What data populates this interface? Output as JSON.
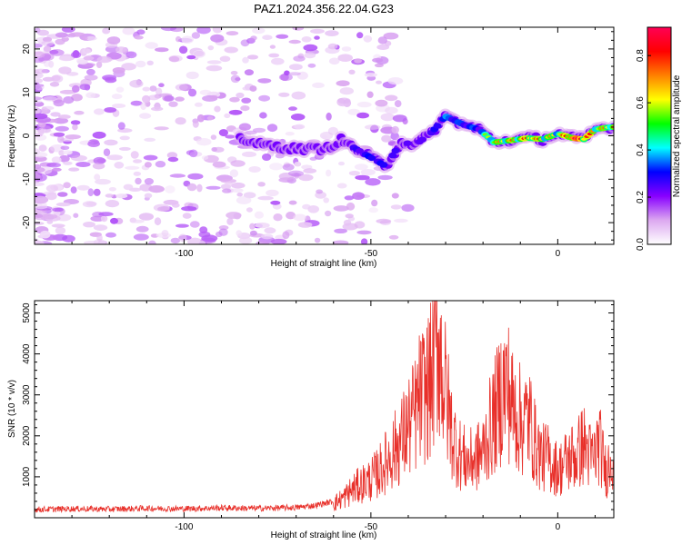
{
  "chart_data": [
    {
      "type": "heatmap",
      "title": "PAZ1.2024.356.22.04.G23",
      "xlabel": "Height of straight line (km)",
      "ylabel": "Frequency (Hz)",
      "xlim": [
        -140,
        15
      ],
      "ylim": [
        -25,
        25
      ],
      "xticks": [
        "-100",
        "-50",
        "0"
      ],
      "xtick_values": [
        -100,
        -50,
        0
      ],
      "yticks": [
        "20",
        "10",
        "0",
        "-10",
        "-20"
      ],
      "ytick_values": [
        20,
        10,
        0,
        -10,
        -20
      ],
      "grid": false,
      "colorbar": {
        "label": "Normalized spectral amplitude",
        "range": [
          0,
          0.92
        ],
        "ticks": [
          "0.0",
          "0.2",
          "0.4",
          "0.6",
          "0.8"
        ],
        "tick_values": [
          0,
          0.2,
          0.4,
          0.6,
          0.8
        ],
        "colormap": [
          "#ffffff",
          "#dca8f0",
          "#8800ff",
          "#0000ff",
          "#00ffff",
          "#00ff00",
          "#ffff00",
          "#ff8000",
          "#ff0000",
          "#ff0055"
        ]
      },
      "ridge": [
        {
          "x": -85,
          "y": -0.5,
          "amp": 0.25
        },
        {
          "x": -80,
          "y": -2.0,
          "amp": 0.22
        },
        {
          "x": -70,
          "y": -3.0,
          "amp": 0.2
        },
        {
          "x": -62,
          "y": -3.0,
          "amp": 0.22
        },
        {
          "x": -58,
          "y": -1.0,
          "amp": 0.25
        },
        {
          "x": -55,
          "y": -2.5,
          "amp": 0.32
        },
        {
          "x": -50,
          "y": -5.0,
          "amp": 0.38
        },
        {
          "x": -46,
          "y": -7.0,
          "amp": 0.35
        },
        {
          "x": -42,
          "y": -1.5,
          "amp": 0.3
        },
        {
          "x": -38,
          "y": -2.0,
          "amp": 0.28
        },
        {
          "x": -34,
          "y": 0.5,
          "amp": 0.32
        },
        {
          "x": -30,
          "y": 4.5,
          "amp": 0.45
        },
        {
          "x": -25,
          "y": 2.5,
          "amp": 0.4
        },
        {
          "x": -21,
          "y": 1.5,
          "amp": 0.42
        },
        {
          "x": -17,
          "y": -1.5,
          "amp": 0.65
        },
        {
          "x": -12,
          "y": -1.0,
          "amp": 0.7
        },
        {
          "x": -8,
          "y": -0.5,
          "amp": 0.75
        },
        {
          "x": -4,
          "y": -0.8,
          "amp": 0.7
        },
        {
          "x": 0,
          "y": 0.5,
          "amp": 0.6
        },
        {
          "x": 4,
          "y": -0.5,
          "amp": 0.9
        },
        {
          "x": 7,
          "y": -0.8,
          "amp": 0.88
        },
        {
          "x": 10,
          "y": 1.5,
          "amp": 0.65
        },
        {
          "x": 14,
          "y": 2.0,
          "amp": 0.7
        }
      ]
    },
    {
      "type": "line",
      "xlabel": "Height of straight line (km)",
      "ylabel": "SNR (10 * v/v)",
      "xlim": [
        -140,
        15
      ],
      "ylim": [
        0,
        5300
      ],
      "xticks": [
        "-100",
        "-50",
        "0"
      ],
      "xtick_values": [
        -100,
        -50,
        0
      ],
      "yticks": [
        "1000",
        "2000",
        "3000",
        "4000",
        "5000"
      ],
      "ytick_values": [
        1000,
        2000,
        3000,
        4000,
        5000
      ],
      "grid": false,
      "series": [
        {
          "color": "#e8302a",
          "x": [
            -140,
            -130,
            -120,
            -110,
            -100,
            -90,
            -80,
            -70,
            -65,
            -60,
            -57,
            -55,
            -52,
            -50,
            -48,
            -46,
            -44,
            -42,
            -40,
            -38,
            -37,
            -35,
            -34,
            -33,
            -32,
            -31,
            -30,
            -29,
            -28,
            -26,
            -24,
            -22,
            -20,
            -19,
            -18,
            -16,
            -15,
            -14,
            -13,
            -12,
            -11,
            -10,
            -9,
            -8,
            -7,
            -6,
            -5,
            -4,
            -3,
            -2,
            -1,
            0,
            1,
            2,
            3,
            4,
            5,
            6,
            7,
            8,
            9,
            10,
            11,
            12,
            13,
            14,
            15
          ],
          "y": [
            200,
            220,
            210,
            230,
            220,
            240,
            230,
            250,
            300,
            400,
            600,
            800,
            1000,
            1100,
            1300,
            1600,
            1900,
            2200,
            2600,
            3000,
            3400,
            3700,
            3900,
            4500,
            5300,
            4300,
            3600,
            2900,
            2300,
            1800,
            1600,
            1700,
            1900,
            2300,
            2600,
            3200,
            3600,
            3800,
            3600,
            3100,
            3000,
            2800,
            2700,
            2900,
            2600,
            2100,
            1900,
            1700,
            1800,
            1600,
            1500,
            1400,
            1450,
            1600,
            1650,
            1800,
            1700,
            2000,
            2100,
            1900,
            1700,
            1800,
            2200,
            1700,
            1300,
            1700,
            1900
          ]
        }
      ]
    }
  ]
}
